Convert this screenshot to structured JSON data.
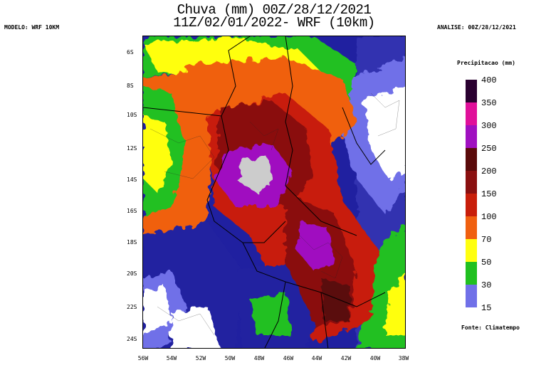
{
  "title_line1": "Chuva (mm) 00Z/28/12/2021",
  "title_line2": "11Z/02/01/2022- WRF (10km)",
  "model_label": "MODELO: WRF 10KM",
  "analysis_label": "ANALISE: 00Z/28/12/2021",
  "lat_labels": [
    "6S",
    "8S",
    "10S",
    "12S",
    "14S",
    "16S",
    "18S",
    "20S",
    "22S",
    "24S"
  ],
  "lon_labels": [
    "56W",
    "54W",
    "52W",
    "50W",
    "48W",
    "46W",
    "44W",
    "42W",
    "40W",
    "38W"
  ],
  "legend": {
    "title": "Precipitacao (mm)",
    "values": [
      "400",
      "350",
      "300",
      "250",
      "200",
      "150",
      "100",
      "70",
      "50",
      "30",
      "15"
    ],
    "colors": [
      "#2a0030",
      "#e0109a",
      "#a010c0",
      "#5a0a0a",
      "#8a1010",
      "#c81e0a",
      "#f06010",
      "#ffff10",
      "#20c020",
      "#20209a",
      "#7070e8"
    ]
  },
  "source_label": "Fonte: Climatempo"
}
